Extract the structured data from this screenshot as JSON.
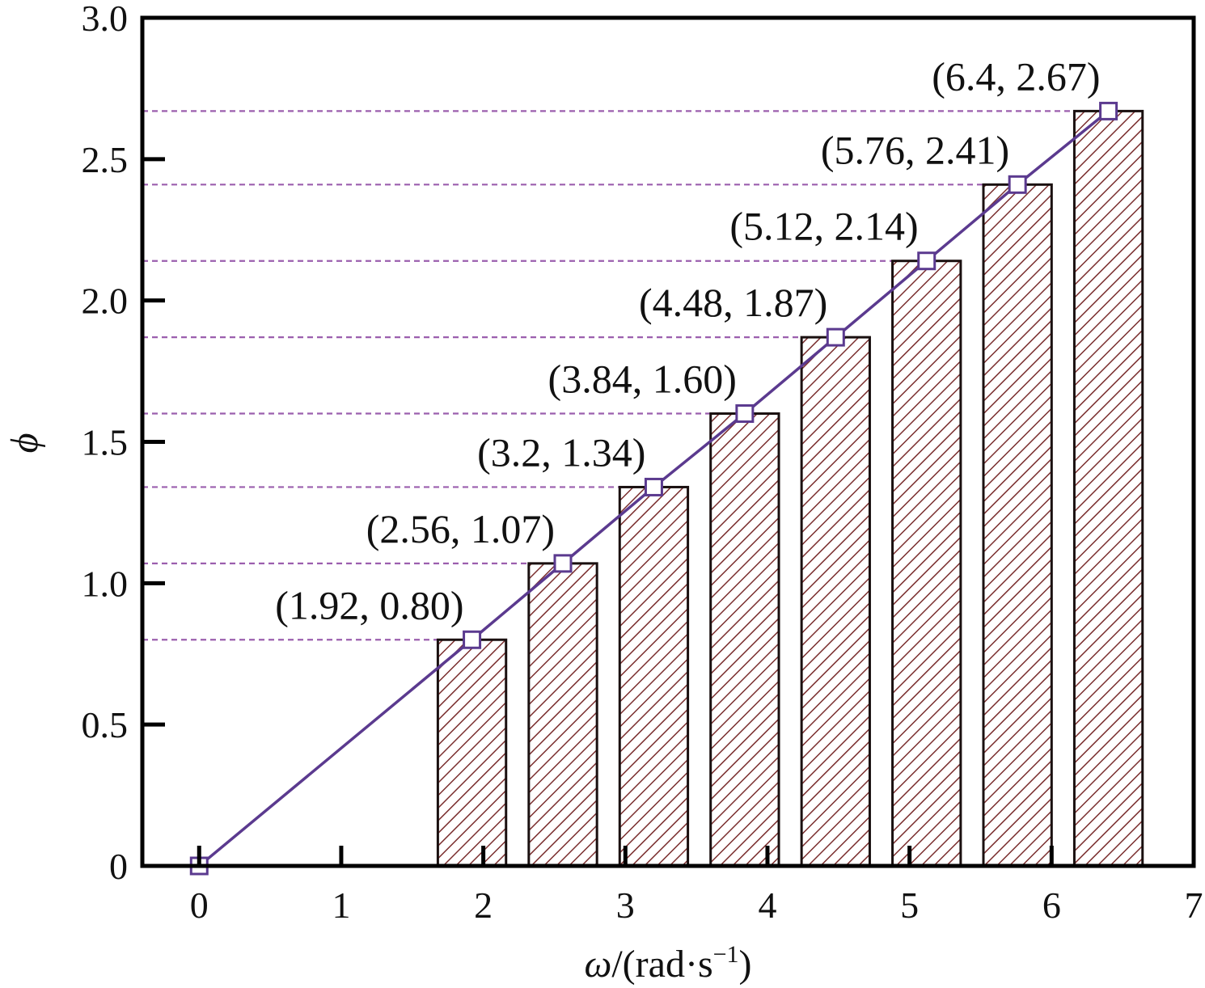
{
  "chart_data": {
    "type": "bar",
    "xlabel": "ω/(rad·s⁻¹)",
    "xlabel_parts": {
      "symbol": "ω",
      "unit_prefix": "/(rad·s",
      "unit_exp": "−1",
      "unit_suffix": ")"
    },
    "ylabel": "ϕ",
    "xlim": [
      -0.4,
      7
    ],
    "ylim": [
      0,
      3.0
    ],
    "xticks": [
      0,
      1,
      2,
      3,
      4,
      5,
      6,
      7
    ],
    "xtick_labels": [
      "0",
      "1",
      "2",
      "3",
      "4",
      "5",
      "6",
      "7"
    ],
    "yticks": [
      0,
      0.5,
      1.0,
      1.5,
      2.0,
      2.5,
      3.0
    ],
    "ytick_labels": [
      "0",
      "0.5",
      "1.0",
      "1.5",
      "2.0",
      "2.5",
      "3.0"
    ],
    "grid": false,
    "bar_width": 0.48,
    "bars": {
      "x": [
        1.92,
        2.56,
        3.2,
        3.84,
        4.48,
        5.12,
        5.76,
        6.4
      ],
      "values": [
        0.8,
        1.07,
        1.34,
        1.6,
        1.87,
        2.14,
        2.41,
        2.67
      ]
    },
    "line": {
      "x": [
        0,
        1.92,
        2.56,
        3.2,
        3.84,
        4.48,
        5.12,
        5.76,
        6.4
      ],
      "y": [
        0,
        0.8,
        1.07,
        1.34,
        1.6,
        1.87,
        2.14,
        2.41,
        2.67
      ]
    },
    "annotations": [
      "(1.92, 0.80)",
      "(2.56, 1.07)",
      "(3.2, 1.34)",
      "(3.84, 1.60)",
      "(4.48, 1.87)",
      "(5.12, 2.14)",
      "(5.76, 2.41)",
      "(6.4, 2.67)"
    ],
    "colors": {
      "bar_hatch": "#7a2e2e",
      "line": "#5b3a8f",
      "guide": "#9b5fae",
      "axis": "#000000"
    }
  }
}
